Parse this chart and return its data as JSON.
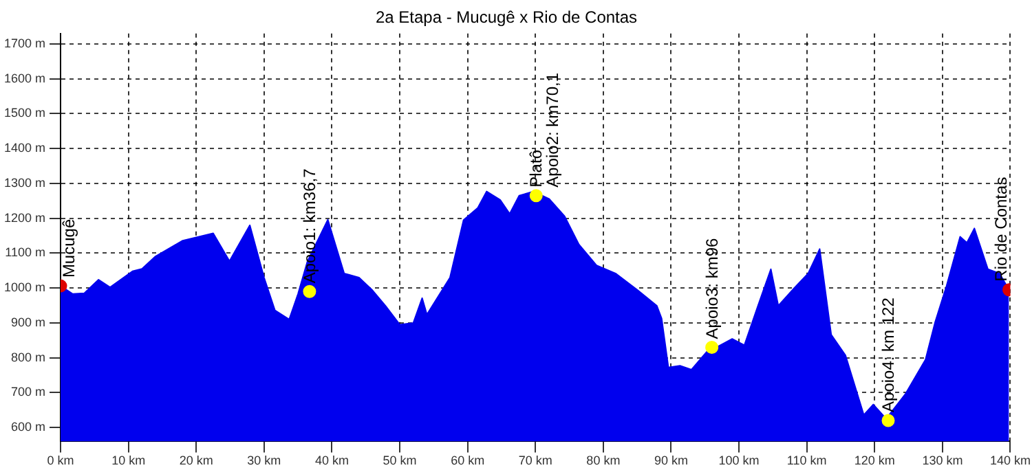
{
  "chart_data": {
    "type": "area",
    "title": "2a Etapa - Mucugê x Rio de Contas",
    "xlim": [
      0,
      140
    ],
    "xticks": [
      {
        "value": 0,
        "label": "0 km"
      },
      {
        "value": 10,
        "label": "10 km"
      },
      {
        "value": 20,
        "label": "20 km"
      },
      {
        "value": 30,
        "label": "30 km"
      },
      {
        "value": 40,
        "label": "40 km"
      },
      {
        "value": 50,
        "label": "50 km"
      },
      {
        "value": 60,
        "label": "60 km"
      },
      {
        "value": 70,
        "label": "70 km"
      },
      {
        "value": 80,
        "label": "80 km"
      },
      {
        "value": 90,
        "label": "90 km"
      },
      {
        "value": 100,
        "label": "100 km"
      },
      {
        "value": 110,
        "label": "110 km"
      },
      {
        "value": 120,
        "label": "120 km"
      },
      {
        "value": 130,
        "label": "130 km"
      },
      {
        "value": 140,
        "label": "140 km"
      }
    ],
    "ylim": [
      560,
      1730
    ],
    "yticks": [
      {
        "value": 600,
        "label": "600 m"
      },
      {
        "value": 700,
        "label": "700 m"
      },
      {
        "value": 800,
        "label": "800 m"
      },
      {
        "value": 900,
        "label": "900 m"
      },
      {
        "value": 1000,
        "label": "1000 m"
      },
      {
        "value": 1100,
        "label": "1100 m"
      },
      {
        "value": 1200,
        "label": "1200 m"
      },
      {
        "value": 1300,
        "label": "1300 m"
      },
      {
        "value": 1400,
        "label": "1400 m"
      },
      {
        "value": 1500,
        "label": "1500 m"
      },
      {
        "value": 1600,
        "label": "1600 m"
      },
      {
        "value": 1700,
        "label": "1700 m"
      }
    ],
    "grid": true,
    "line_style": "dashed",
    "series": [
      {
        "color": "#0000ee",
        "x": [
          0,
          1.8,
          3.5,
          5.6,
          7.3,
          10.6,
          12,
          14,
          18,
          22.5,
          24.9,
          27.9,
          30,
          31.6,
          33.7,
          35,
          36.4,
          39.4,
          41.8,
          44,
          45.9,
          47.9,
          50,
          52,
          53.3,
          54,
          57.4,
          59.4,
          61.5,
          62.8,
          64.8,
          66.2,
          67.6,
          69.7,
          72,
          74.3,
          76.4,
          79,
          81.8,
          85,
          87.9,
          88.6,
          89.6,
          91.3,
          93,
          95.3,
          96.7,
          99,
          100.8,
          102.8,
          104.7,
          105.8,
          108.2,
          110.2,
          111.9,
          113.6,
          115.7,
          118.4,
          119.8,
          121.7,
          124.5,
          127.5,
          128.9,
          130.6,
          132.6,
          133.6,
          134.7,
          136.7,
          138.4,
          139.8
        ],
        "values": [
          1006,
          983,
          985,
          1024,
          1002,
          1048,
          1055,
          1091,
          1136,
          1157,
          1077,
          1180,
          1030,
          936,
          910,
          983,
          1077,
          1196,
          1042,
          1030,
          995,
          949,
          895,
          900,
          971,
          924,
          1030,
          1195,
          1230,
          1277,
          1253,
          1213,
          1265,
          1277,
          1256,
          1206,
          1125,
          1065,
          1042,
          995,
          949,
          913,
          772,
          777,
          766,
          818,
          830,
          854,
          836,
          949,
          1054,
          949,
          1001,
          1042,
          1112,
          866,
          807,
          636,
          666,
          625,
          695,
          795,
          901,
          1006,
          1147,
          1130,
          1171,
          1054,
          1042,
          995
        ]
      },
      {
        "type": "scatter",
        "marker": "circle",
        "x": [
          0,
          36.7,
          70.1,
          96,
          122,
          139.8
        ],
        "values": [
          1006,
          990,
          1265,
          830,
          620,
          995
        ],
        "colors": [
          "#dd0000",
          "#ffff00",
          "#ffff00",
          "#ffff00",
          "#ffff00",
          "#dd0000"
        ]
      }
    ],
    "annotations": [
      {
        "text": "Mucugê",
        "x": 0,
        "y": 1006
      },
      {
        "text": "Apoio1: km36,7",
        "x": 36.7,
        "y": 990
      },
      {
        "text": "Platô",
        "x": 70.1,
        "y": 1265
      },
      {
        "text": "Apoio2: km70,1",
        "x": 70.1,
        "y": 1265
      },
      {
        "text": "Apoio3: km96",
        "x": 96,
        "y": 830
      },
      {
        "text": "Apoio4: km 122",
        "x": 122,
        "y": 620
      },
      {
        "text": "Rio de Contas",
        "x": 139.8,
        "y": 995
      }
    ]
  }
}
